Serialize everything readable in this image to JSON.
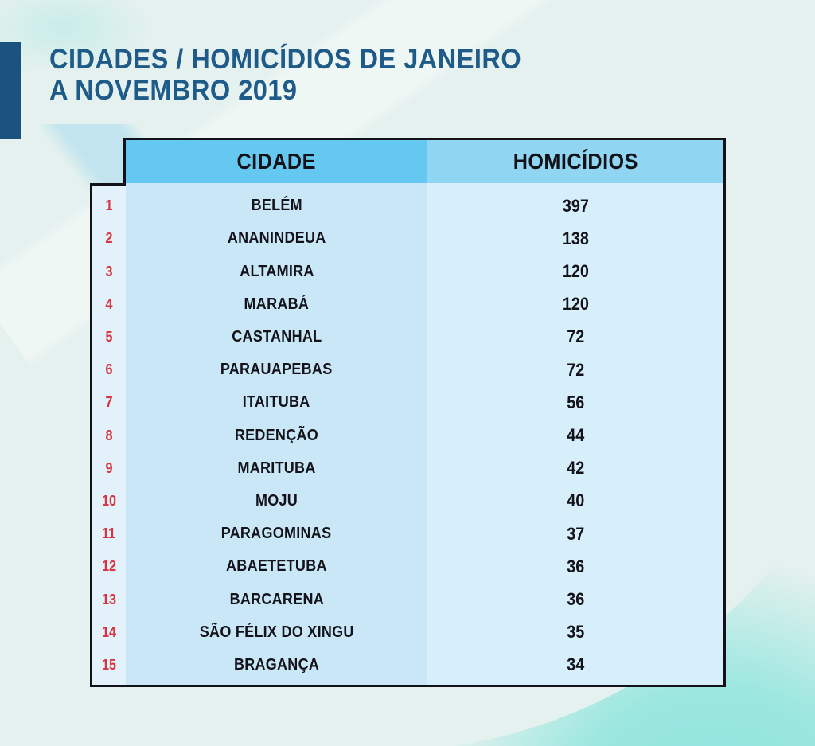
{
  "title": {
    "line1": "CIDADES / HOMICÍDIOS DE JANEIRO",
    "line2": "A NOVEMBRO 2019"
  },
  "table": {
    "columns": [
      "CIDADE",
      "HOMICÍDIOS"
    ],
    "rows": [
      {
        "rank": "1",
        "city": "BELÉM",
        "value": "397"
      },
      {
        "rank": "2",
        "city": "ANANINDEUA",
        "value": "138"
      },
      {
        "rank": "3",
        "city": "ALTAMIRA",
        "value": "120"
      },
      {
        "rank": "4",
        "city": "MARABÁ",
        "value": "120"
      },
      {
        "rank": "5",
        "city": "CASTANHAL",
        "value": "72"
      },
      {
        "rank": "6",
        "city": "PARAUAPEBAS",
        "value": "72"
      },
      {
        "rank": "7",
        "city": "ITAITUBA",
        "value": "56"
      },
      {
        "rank": "8",
        "city": "REDENÇÃO",
        "value": "44"
      },
      {
        "rank": "9",
        "city": "MARITUBA",
        "value": "42"
      },
      {
        "rank": "10",
        "city": "MOJU",
        "value": "40"
      },
      {
        "rank": "11",
        "city": "PARAGOMINAS",
        "value": "37"
      },
      {
        "rank": "12",
        "city": "ABAETETUBA",
        "value": "36"
      },
      {
        "rank": "13",
        "city": "BARCARENA",
        "value": "36"
      },
      {
        "rank": "14",
        "city": "SÃO FÉLIX DO XINGU",
        "value": "35"
      },
      {
        "rank": "15",
        "city": "BRAGANÇA",
        "value": "34"
      }
    ]
  },
  "colors": {
    "page_background": "#e4f1ee",
    "accent_bar": "#1a537e",
    "title_text": "#1f5b88",
    "header_city_bg": "#64c8f0",
    "header_count_bg": "#90d6f3",
    "rank_column_bg": "#e2f1fa",
    "city_column_bg": "#c9e7f7",
    "value_column_bg": "#d7eefb",
    "table_border": "#121218",
    "rank_text": "#d8333f",
    "cell_text": "#131319",
    "teal_crescent": "#9de7e0"
  },
  "chart_data": {
    "type": "table",
    "title": "CIDADES / HOMICÍDIOS DE JANEIRO A NOVEMBRO 2019",
    "columns": [
      "CIDADE",
      "HOMICÍDIOS"
    ],
    "ranks": [
      1,
      2,
      3,
      4,
      5,
      6,
      7,
      8,
      9,
      10,
      11,
      12,
      13,
      14,
      15
    ],
    "categories": [
      "BELÉM",
      "ANANINDEUA",
      "ALTAMIRA",
      "MARABÁ",
      "CASTANHAL",
      "PARAUAPEBAS",
      "ITAITUBA",
      "REDENÇÃO",
      "MARITUBA",
      "MOJU",
      "PARAGOMINAS",
      "ABAETETUBA",
      "BARCARENA",
      "SÃO FÉLIX DO XINGU",
      "BRAGANÇA"
    ],
    "values": [
      397,
      138,
      120,
      120,
      72,
      72,
      56,
      44,
      42,
      40,
      37,
      36,
      36,
      35,
      34
    ]
  }
}
